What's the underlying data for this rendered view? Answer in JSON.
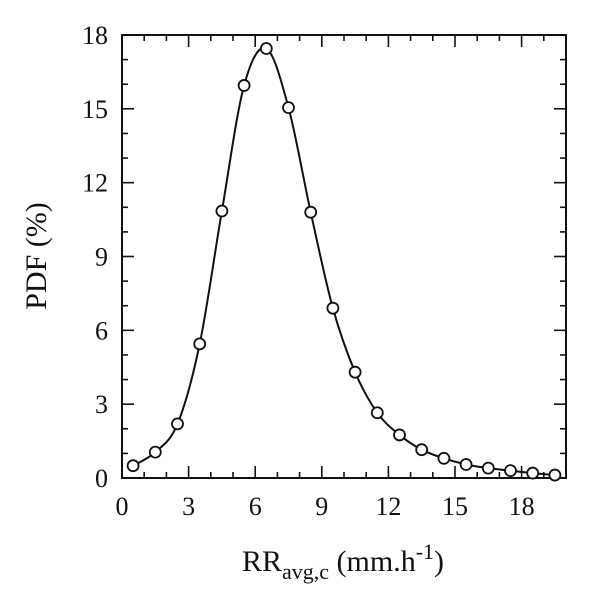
{
  "chart_data": {
    "type": "line",
    "title": "",
    "xlabel": {
      "main": "RR",
      "subscript": "avg,c",
      "unit_prefix": " (mm.h",
      "unit_superscript": "-1",
      "unit_suffix": ")"
    },
    "ylabel": "PDF (%)",
    "xlim": [
      0,
      20
    ],
    "ylim": [
      0,
      18
    ],
    "xticks": [
      0,
      3,
      6,
      9,
      12,
      15,
      18
    ],
    "yticks": [
      0,
      3,
      6,
      9,
      12,
      15,
      18
    ],
    "grid": false,
    "marker": "open-circle",
    "line_color": "#111111",
    "series": [
      {
        "x": [
          0.5,
          1.5,
          2.5,
          3.5,
          4.5,
          5.5,
          6.5,
          7.5,
          8.5,
          9.5,
          10.5,
          11.5,
          12.5,
          13.5,
          14.5,
          15.5,
          16.5,
          17.5,
          18.5,
          19.5
        ],
        "values": [
          0.5,
          1.05,
          2.2,
          5.45,
          10.85,
          15.95,
          17.45,
          15.05,
          10.8,
          6.9,
          4.3,
          2.65,
          1.75,
          1.15,
          0.8,
          0.55,
          0.4,
          0.3,
          0.2,
          0.12
        ]
      }
    ]
  }
}
